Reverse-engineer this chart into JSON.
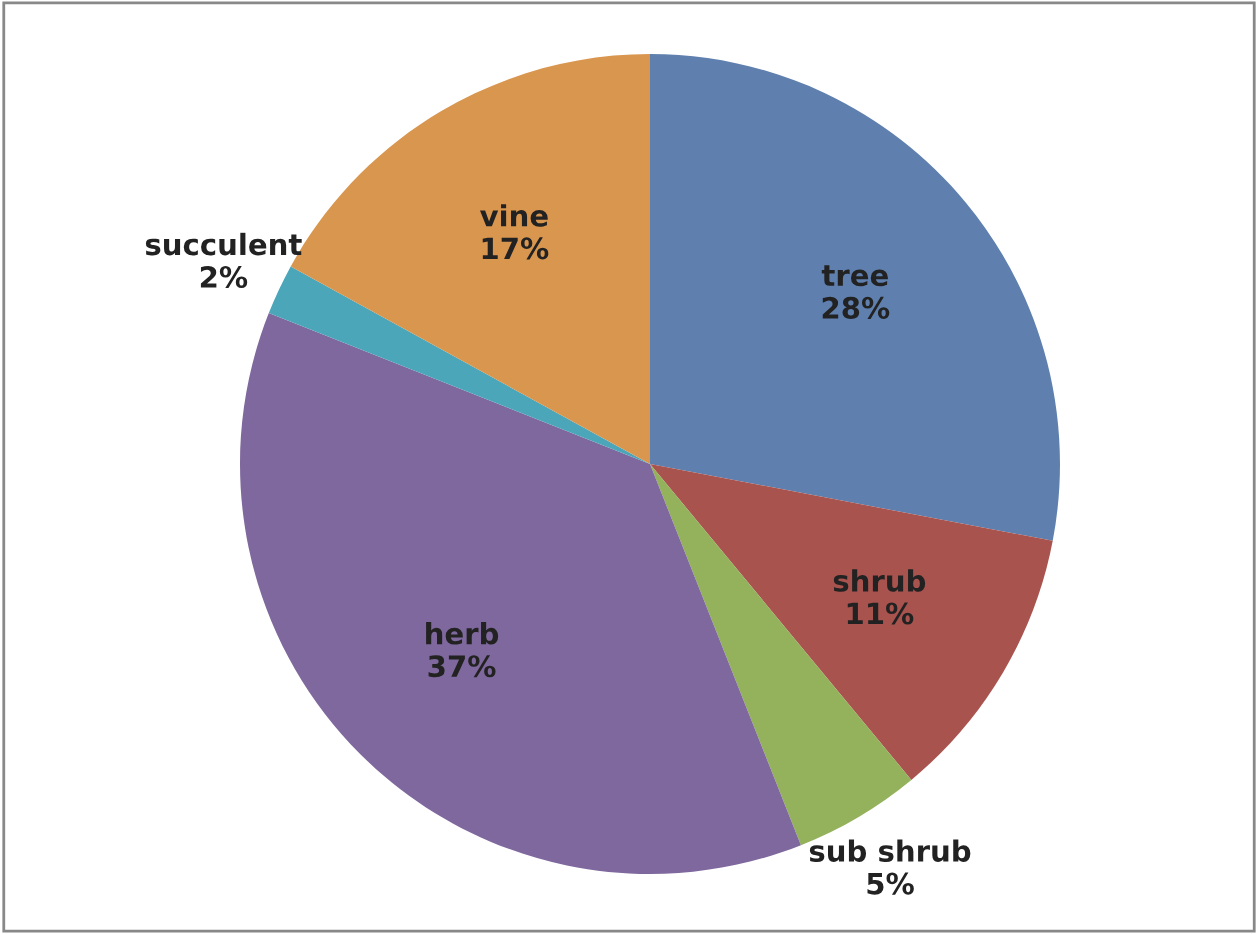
{
  "chart_data": {
    "type": "pie",
    "categories": [
      "tree",
      "shrub",
      "sub shrub",
      "herb",
      "succulent",
      "vine"
    ],
    "values": [
      28,
      11,
      5,
      37,
      2,
      17
    ],
    "value_labels": [
      "28%",
      "11%",
      "5%",
      "37%",
      "2%",
      "17%"
    ],
    "colors": [
      "#5f80ae",
      "#a9534f",
      "#94b15b",
      "#7f689d",
      "#4ba6b9",
      "#d9964f"
    ]
  }
}
